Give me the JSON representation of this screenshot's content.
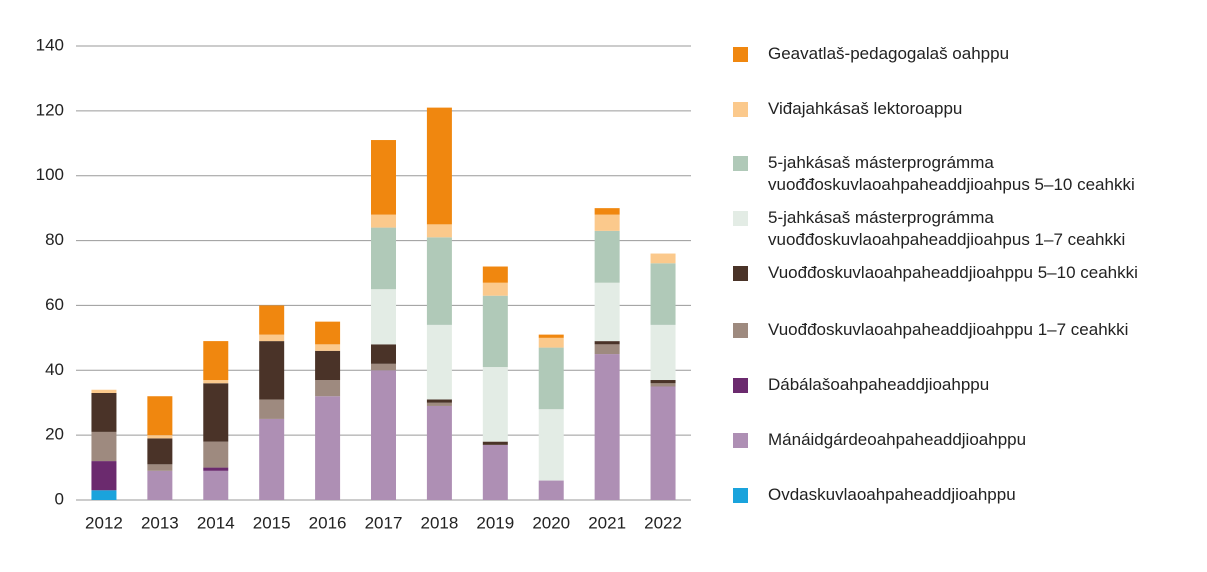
{
  "chart_data": {
    "type": "stacked-bar",
    "categories": [
      "2012",
      "2013",
      "2014",
      "2015",
      "2016",
      "2017",
      "2018",
      "2019",
      "2020",
      "2021",
      "2022"
    ],
    "series": [
      {
        "name": "Ovdaskuvlaoahpaheaddjioahppu",
        "color": "#1aa3dc",
        "values": [
          3,
          0,
          0,
          0,
          0,
          0,
          0,
          0,
          0,
          0,
          0
        ]
      },
      {
        "name": "Mánáidgárdeoahpaheaddjioahppu",
        "color": "#ae8fb4",
        "values": [
          0,
          9,
          9,
          25,
          32,
          40,
          29,
          17,
          6,
          45,
          35
        ]
      },
      {
        "name": "Dábálašoahpaheaddjioahppu",
        "color": "#6b2a6e",
        "values": [
          9,
          0,
          1,
          0,
          0,
          0,
          0,
          0,
          0,
          0,
          0
        ]
      },
      {
        "name": "Vuođđoskuvlaoahpaheaddjioahppu  1–7 ceahkki",
        "color": "#9e8a7f",
        "values": [
          9,
          2,
          8,
          6,
          5,
          2,
          1,
          0,
          0,
          3,
          1
        ]
      },
      {
        "name": "Vuođđoskuvlaoahpaheaddjioahppu 5–10 ceahkki",
        "color": "#4a3328",
        "values": [
          12,
          8,
          18,
          18,
          9,
          6,
          1,
          1,
          0,
          1,
          1
        ]
      },
      {
        "name": "5-jahkásaš másterprográmma vuođđoskuvlaoahpaheaddjioahpus 1–7 ceahkki",
        "color": "#e3ece5",
        "values": [
          0,
          0,
          0,
          0,
          0,
          17,
          23,
          23,
          22,
          18,
          17
        ]
      },
      {
        "name": "5-jahkásaš másterprográmma vuođđoskuvlaoahpaheaddjioahpus 5–10 ceahkki",
        "color": "#b0c9b8",
        "values": [
          0,
          0,
          0,
          0,
          0,
          19,
          27,
          22,
          19,
          16,
          19
        ]
      },
      {
        "name": "Viđajahkásaš lektoroappu",
        "color": "#fbc98c",
        "values": [
          1,
          1,
          1,
          2,
          2,
          4,
          4,
          4,
          3,
          5,
          3
        ]
      },
      {
        "name": "Geavatlaš-pedagogalaš oahppu",
        "color": "#f0870f",
        "values": [
          0,
          12,
          12,
          9,
          7,
          23,
          36,
          5,
          1,
          2,
          0
        ]
      }
    ],
    "ylim": [
      0,
      140
    ],
    "yticks": [
      0,
      20,
      40,
      60,
      80,
      100,
      120,
      140
    ],
    "grid": true
  }
}
